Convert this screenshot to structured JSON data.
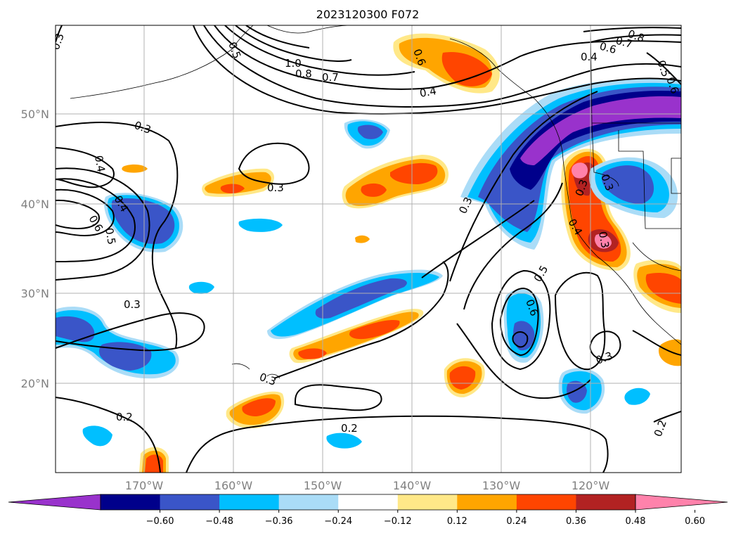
{
  "title": "2023120300 F072",
  "lat_labels": [
    "50°N",
    "40°N",
    "30°N",
    "20°N"
  ],
  "lon_labels": [
    "170°W",
    "160°W",
    "150°W",
    "140°W",
    "130°W",
    "120°W"
  ],
  "colorbar": {
    "colors": [
      "#9932cc",
      "#00008b",
      "#3a55c8",
      "#00bfff",
      "#aadcf7",
      "#ffffff",
      "#ffe888",
      "#ffa500",
      "#ff4500",
      "#b22222",
      "#ff82ab"
    ],
    "labels": [
      "−0.60",
      "−0.48",
      "−0.36",
      "−0.24",
      "−0.12",
      "0.12",
      "0.24",
      "0.36",
      "0.48",
      "0.60"
    ]
  },
  "contour_labels": [
    "0.3",
    "0.5",
    "1.0",
    "0.8",
    "0.7",
    "0.6",
    "0.4",
    "0.8",
    "0.7",
    "0.6",
    "0.4",
    "0.5",
    "0.6",
    "0.3",
    "0.4",
    "0.4",
    "0.6",
    "0.5",
    "0.3",
    "0.3",
    "0.3",
    "0.5",
    "0.6",
    "0.3",
    "0.4",
    "0.3",
    "0.3",
    "0.3",
    "0.2",
    "0.2",
    "0.3",
    "0.2"
  ]
}
